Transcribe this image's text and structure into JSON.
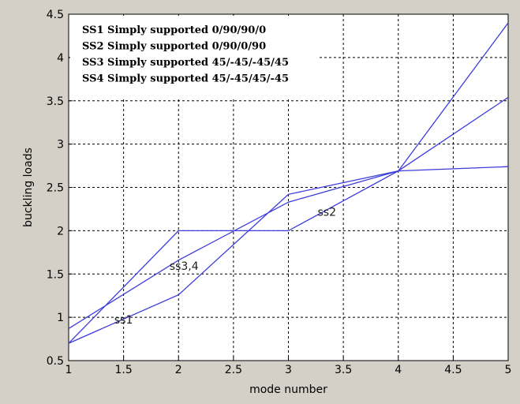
{
  "chart_data": {
    "type": "line",
    "xlabel": "mode number",
    "ylabel": "buckling loads",
    "xlim": [
      1,
      5
    ],
    "ylim": [
      0.5,
      4.5
    ],
    "x_ticks": [
      "1",
      "1.5",
      "2",
      "2.5",
      "3",
      "3.5",
      "4",
      "4.5",
      "5"
    ],
    "y_ticks": [
      "0.5",
      "1",
      "1.5",
      "2",
      "2.5",
      "3",
      "3.5",
      "4",
      "4.5"
    ],
    "grid": true,
    "line_color": "#3c3cdc",
    "legend_position": "top-left",
    "legend": [
      "SS1 Simply supported 0/90/90/0",
      "SS2 Simply supported 0/90/0/90",
      "SS3 Simply supported 45/-45/-45/45",
      "SS4 Simply supported 45/-45/45/-45"
    ],
    "series_labels": [
      {
        "text": "ss1",
        "x": 1.5,
        "y": 0.93
      },
      {
        "text": "ss2",
        "x": 3.35,
        "y": 2.17
      },
      {
        "text": "ss3,4",
        "x": 2.05,
        "y": 1.55
      }
    ],
    "series": [
      {
        "x": [
          1,
          2,
          3,
          4,
          5
        ],
        "values": [
          0.7,
          1.26,
          2.42,
          2.69,
          3.54
        ]
      },
      {
        "x": [
          1,
          2,
          3,
          4,
          5
        ],
        "values": [
          0.7,
          2.0,
          2.0,
          2.69,
          4.4
        ]
      },
      {
        "x": [
          1,
          2,
          3,
          4,
          5
        ],
        "values": [
          0.87,
          1.66,
          2.33,
          2.69,
          2.74
        ]
      }
    ]
  }
}
